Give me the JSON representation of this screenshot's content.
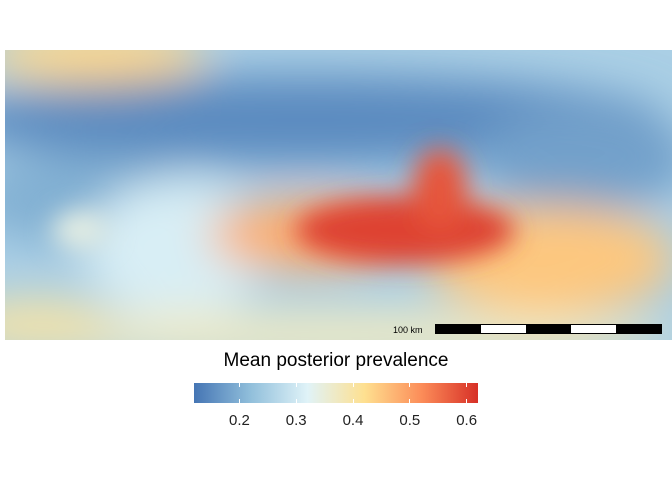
{
  "map": {
    "type": "raster-heatmap",
    "colormap": [
      "#4575b4",
      "#91bfdb",
      "#e0f3f8",
      "#fee090",
      "#fc8d59",
      "#d73027"
    ],
    "value_range": [
      0.12,
      0.62
    ],
    "hotspots": [
      {
        "name": "central-east-ridge",
        "value": 0.6
      },
      {
        "name": "west-band",
        "value": 0.48
      },
      {
        "name": "east-band",
        "value": 0.45
      },
      {
        "name": "top-left",
        "value": 0.43
      },
      {
        "name": "bottom-left",
        "value": 0.4
      },
      {
        "name": "bottom-middle",
        "value": 0.42
      },
      {
        "name": "left-pale-spot",
        "value": 0.34
      }
    ],
    "coldspots": [
      {
        "name": "north-band",
        "value": 0.15
      },
      {
        "name": "mid-left",
        "value": 0.2
      },
      {
        "name": "north-east",
        "value": 0.18
      }
    ]
  },
  "scale_bar": {
    "label": "100 km",
    "segments": 5,
    "colors": [
      "#000000",
      "#ffffff",
      "#000000",
      "#ffffff",
      "#000000"
    ]
  },
  "legend": {
    "title": "Mean posterior prevalence",
    "min": 0.12,
    "max": 0.62,
    "ticks": [
      {
        "value": 0.2,
        "label": "0.2"
      },
      {
        "value": 0.3,
        "label": "0.3"
      },
      {
        "value": 0.4,
        "label": "0.4"
      },
      {
        "value": 0.5,
        "label": "0.5"
      },
      {
        "value": 0.6,
        "label": "0.6"
      }
    ]
  }
}
